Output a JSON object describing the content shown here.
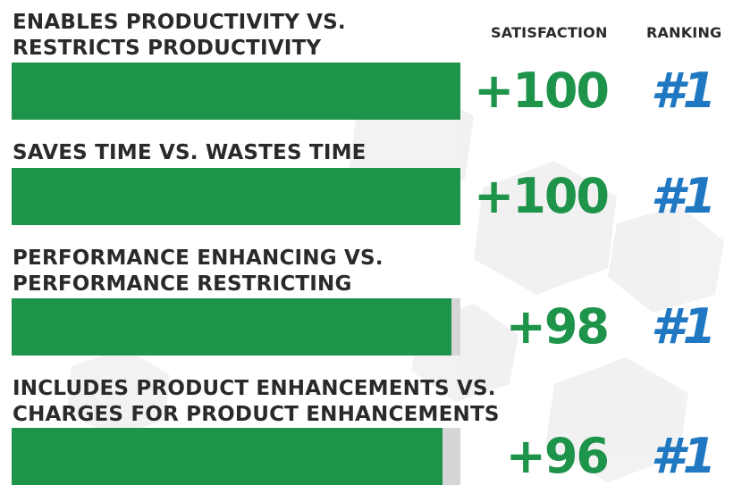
{
  "chart_data": {
    "type": "bar",
    "orientation": "horizontal",
    "column_headers": {
      "satisfaction": "SATISFACTION",
      "ranking": "RANKING"
    },
    "categories": [
      [
        "ENABLES PRODUCTIVITY VS.",
        "RESTRICTS PRODUCTIVITY"
      ],
      [
        "SAVES TIME VS. WASTES TIME"
      ],
      [
        "PERFORMANCE ENHANCING VS.",
        "PERFORMANCE RESTRICTING"
      ],
      [
        "INCLUDES PRODUCT ENHANCEMENTS VS.",
        "CHARGES FOR PRODUCT ENHANCEMENTS"
      ]
    ],
    "values": [
      100,
      100,
      98,
      96
    ],
    "value_labels": [
      "+100",
      "+100",
      "+98",
      "+96"
    ],
    "rankings": [
      "#1",
      "#1",
      "#1",
      "#1"
    ],
    "xlim": [
      0,
      100
    ],
    "grid": false,
    "colors": {
      "bar": "#1e934a",
      "track": "#d6d6d6",
      "satisfaction_text": "#1e934a",
      "ranking_text": "#1f78c1",
      "label_text": "#2a2a2a"
    }
  }
}
